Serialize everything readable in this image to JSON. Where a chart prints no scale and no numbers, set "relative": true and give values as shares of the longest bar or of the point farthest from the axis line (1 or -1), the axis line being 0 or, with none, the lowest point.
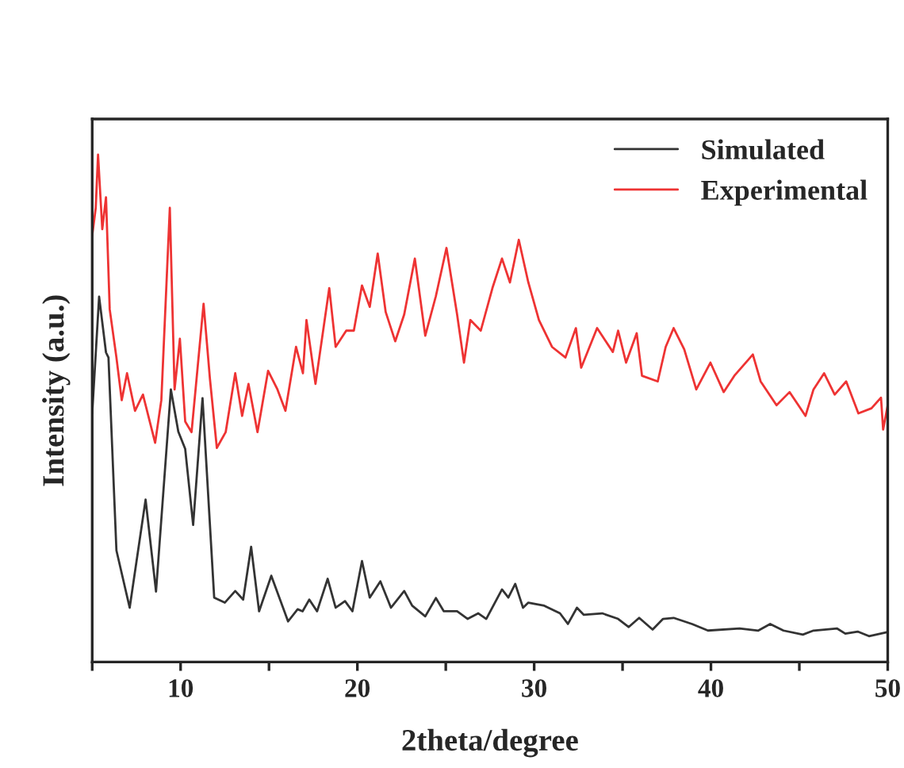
{
  "chart_data": {
    "type": "line",
    "xlabel": "2theta/degree",
    "ylabel": "Intensity (a.u.)",
    "relative": true,
    "xlim": [
      5,
      50
    ],
    "xticks": [
      {
        "value": 5,
        "label": null
      },
      10,
      {
        "value": 15,
        "label": null
      },
      20,
      {
        "value": 25,
        "label": null
      },
      30,
      {
        "value": 35,
        "label": null
      },
      40,
      {
        "value": 45,
        "label": null
      },
      50
    ],
    "tick_labels": "x",
    "grid": false,
    "legend": "top right",
    "marker": "none",
    "line_style": "solid",
    "series": [
      {
        "name": "Simulated",
        "color": "#333333",
        "x": [
          5.0,
          5.39,
          5.78,
          5.92,
          6.37,
          7.12,
          8.02,
          8.61,
          9.45,
          9.87,
          10.26,
          10.71,
          11.24,
          11.9,
          12.5,
          13.09,
          13.54,
          13.99,
          14.44,
          15.13,
          16.08,
          16.62,
          16.9,
          17.28,
          17.72,
          18.32,
          18.77,
          19.3,
          19.72,
          20.26,
          20.7,
          21.3,
          21.9,
          22.65,
          23.1,
          23.84,
          24.44,
          24.89,
          25.64,
          26.24,
          26.84,
          27.29,
          28.18,
          28.54,
          28.93,
          29.37,
          29.67,
          30.57,
          31.46,
          31.91,
          32.42,
          32.81,
          33.85,
          34.75,
          35.35,
          35.94,
          36.7,
          37.29,
          37.89,
          38.93,
          39.83,
          41.62,
          42.68,
          43.35,
          44.1,
          45.2,
          45.8,
          47.14,
          47.6,
          48.3,
          48.94,
          50.0
        ],
        "values": [
          0.49,
          0.72,
          0.61,
          0.6,
          0.22,
          0.107,
          0.32,
          0.139,
          0.537,
          0.454,
          0.42,
          0.27,
          0.52,
          0.127,
          0.117,
          0.14,
          0.123,
          0.227,
          0.1,
          0.17,
          0.08,
          0.104,
          0.1,
          0.123,
          0.1,
          0.164,
          0.107,
          0.12,
          0.1,
          0.199,
          0.127,
          0.159,
          0.107,
          0.14,
          0.111,
          0.09,
          0.126,
          0.1,
          0.1,
          0.085,
          0.096,
          0.085,
          0.143,
          0.127,
          0.154,
          0.107,
          0.117,
          0.111,
          0.096,
          0.075,
          0.107,
          0.093,
          0.096,
          0.085,
          0.069,
          0.087,
          0.064,
          0.085,
          0.087,
          0.075,
          0.062,
          0.066,
          0.062,
          0.075,
          0.062,
          0.054,
          0.062,
          0.066,
          0.056,
          0.06,
          0.051,
          0.059
        ]
      },
      {
        "name": "Experimental",
        "color": "#ee3333",
        "x": [
          5.0,
          5.2,
          5.33,
          5.57,
          5.78,
          5.99,
          6.37,
          6.67,
          6.97,
          7.42,
          7.87,
          8.56,
          8.91,
          9.39,
          9.66,
          9.96,
          10.26,
          10.62,
          11.3,
          11.66,
          12.05,
          12.55,
          13.09,
          13.48,
          13.84,
          14.35,
          14.95,
          15.48,
          15.93,
          16.53,
          16.92,
          17.12,
          17.63,
          18.41,
          18.77,
          19.37,
          19.8,
          20.26,
          20.7,
          21.15,
          21.6,
          22.14,
          22.65,
          23.25,
          23.84,
          24.44,
          25.04,
          25.64,
          26.03,
          26.39,
          26.98,
          27.64,
          28.18,
          28.63,
          29.13,
          29.67,
          30.27,
          31.01,
          31.77,
          32.36,
          32.66,
          33.56,
          34.45,
          34.75,
          35.2,
          35.8,
          36.1,
          36.99,
          37.44,
          37.89,
          38.49,
          39.17,
          39.97,
          40.72,
          41.32,
          42.37,
          42.81,
          43.71,
          44.45,
          45.35,
          45.8,
          46.4,
          47.0,
          47.65,
          48.34,
          49.08,
          49.62,
          49.74,
          50.0
        ],
        "values": [
          0.84,
          0.895,
          1.0,
          0.853,
          0.916,
          0.695,
          0.6,
          0.516,
          0.569,
          0.495,
          0.527,
          0.432,
          0.516,
          0.895,
          0.537,
          0.637,
          0.474,
          0.453,
          0.706,
          0.558,
          0.422,
          0.453,
          0.569,
          0.485,
          0.548,
          0.453,
          0.574,
          0.537,
          0.495,
          0.621,
          0.569,
          0.674,
          0.548,
          0.737,
          0.621,
          0.653,
          0.653,
          0.742,
          0.7,
          0.805,
          0.69,
          0.632,
          0.685,
          0.795,
          0.643,
          0.721,
          0.816,
          0.685,
          0.59,
          0.674,
          0.653,
          0.737,
          0.795,
          0.748,
          0.832,
          0.748,
          0.674,
          0.621,
          0.6,
          0.658,
          0.58,
          0.658,
          0.611,
          0.653,
          0.59,
          0.648,
          0.564,
          0.553,
          0.621,
          0.658,
          0.616,
          0.537,
          0.59,
          0.532,
          0.564,
          0.606,
          0.553,
          0.506,
          0.532,
          0.485,
          0.537,
          0.569,
          0.527,
          0.553,
          0.49,
          0.5,
          0.521,
          0.458,
          0.506
        ]
      }
    ]
  }
}
